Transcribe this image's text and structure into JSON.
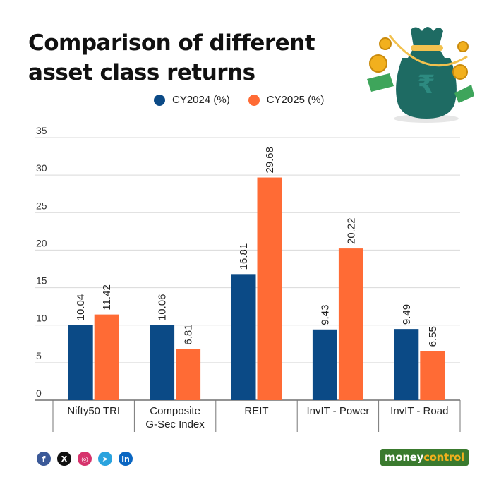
{
  "header": {
    "title_line1": "Comparison of different",
    "title_line2": "asset class returns"
  },
  "colors": {
    "series1": "#0b4a86",
    "series2": "#ff6b35",
    "grid": "#d9d9d9",
    "text": "#222222"
  },
  "chart_data": {
    "type": "bar",
    "categories": [
      "Nifty50 TRI",
      "Composite G-Sec Index",
      "REIT",
      "InvIT - Power",
      "InvIT - Road"
    ],
    "category_lines": [
      [
        "Nifty50 TRI"
      ],
      [
        "Composite",
        "G-Sec Index"
      ],
      [
        "REIT"
      ],
      [
        "InvIT - Power"
      ],
      [
        "InvIT - Road"
      ]
    ],
    "series": [
      {
        "name": "CY2024 (%)",
        "values": [
          10.04,
          10.06,
          16.81,
          9.43,
          9.49
        ],
        "labels": [
          "10.04",
          "10.06",
          "16.81",
          "9.43",
          "9.49"
        ]
      },
      {
        "name": "CY2025 (%)",
        "values": [
          11.42,
          6.81,
          29.68,
          20.22,
          6.55
        ],
        "labels": [
          "11.42",
          "6.81",
          "29.68",
          "20.22",
          "6.55"
        ]
      }
    ],
    "ylim": [
      0,
      35
    ],
    "yticks": [
      "0",
      "5",
      "10",
      "15",
      "20",
      "25",
      "30",
      "35"
    ],
    "grid": true,
    "legend_position": "top",
    "data_labels": "vertical"
  },
  "footer": {
    "social_icons": [
      "facebook-icon",
      "x-icon",
      "instagram-icon",
      "telegram-icon",
      "linkedin-icon"
    ],
    "social_glyphs": [
      "f",
      "X",
      "◎",
      "➤",
      "in"
    ],
    "social_colors": [
      "#3b5998",
      "#111111",
      "#d6336c",
      "#2aa3de",
      "#0a66c2"
    ],
    "brand_part1": "money",
    "brand_part2": "control"
  }
}
